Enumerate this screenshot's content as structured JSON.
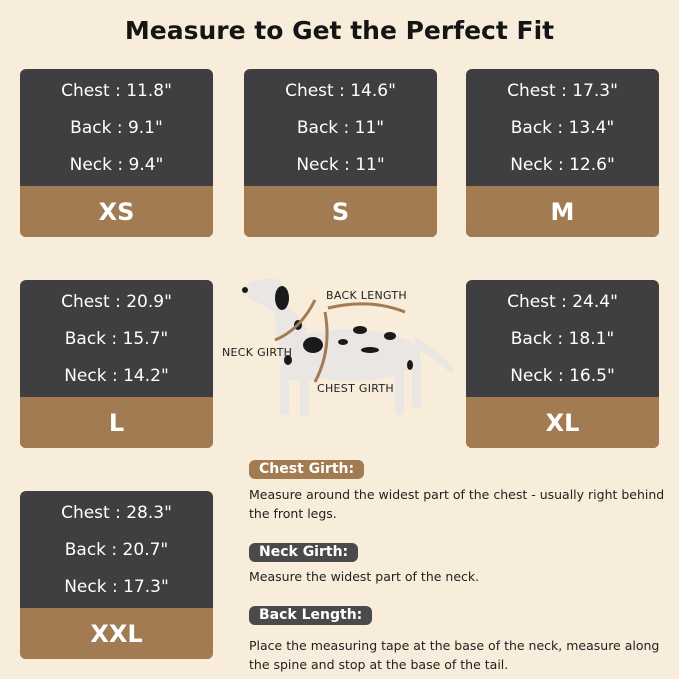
{
  "title": "Measure to Get the Perfect Fit",
  "sizes": [
    {
      "size": "XS",
      "chest": "Chest : 11.8\"",
      "back": "Back : 9.1\"",
      "neck": "Neck : 9.4\""
    },
    {
      "size": "S",
      "chest": "Chest : 14.6\"",
      "back": "Back : 11\"",
      "neck": "Neck : 11\""
    },
    {
      "size": "M",
      "chest": "Chest : 17.3\"",
      "back": "Back : 13.4\"",
      "neck": "Neck : 12.6\""
    },
    {
      "size": "L",
      "chest": "Chest : 20.9\"",
      "back": "Back : 15.7\"",
      "neck": "Neck : 14.2\""
    },
    {
      "size": "XL",
      "chest": "Chest : 24.4\"",
      "back": "Back : 18.1\"",
      "neck": "Neck : 16.5\""
    },
    {
      "size": "XXL",
      "chest": "Chest : 28.3\"",
      "back": "Back : 20.7\"",
      "neck": "Neck : 17.3\""
    }
  ],
  "diagram": {
    "back_length": "BACK LENGTH",
    "neck_girth": "NECK GIRTH",
    "chest_girth": "CHEST GIRTH"
  },
  "instructions": [
    {
      "label": "Chest Girth:",
      "text": "Measure around the widest part of the chest - usually right behind the front legs.",
      "color": "#a37b53"
    },
    {
      "label": "Neck Girth:",
      "text": "Measure the widest part of the neck.",
      "color": "#4a4a4c"
    },
    {
      "label": "Back Length:",
      "text": "Place the measuring tape at the base of the neck, measure along the spine and stop at the base of the tail.",
      "color": "#4a4a4c"
    }
  ],
  "colors": {
    "background": "#f8ecda",
    "card_dark": "#3f3f41",
    "card_brown": "#a37b53"
  }
}
